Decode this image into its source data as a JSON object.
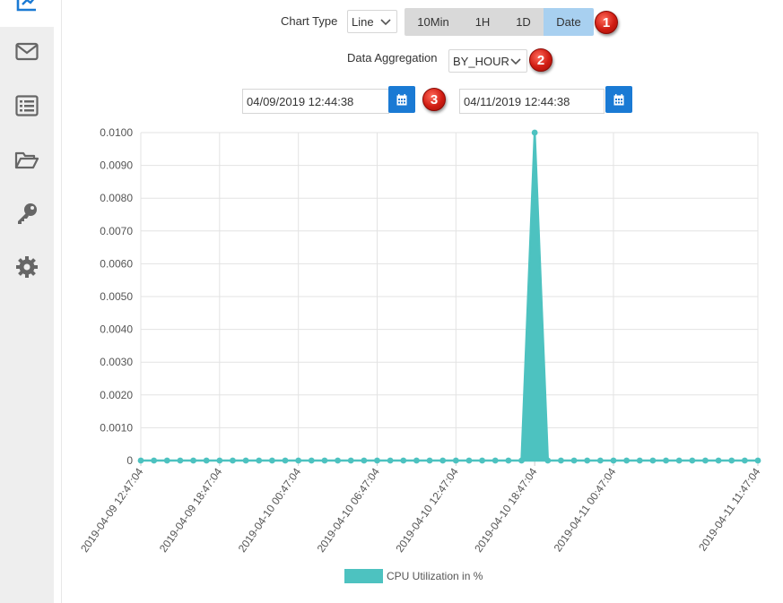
{
  "sidebar": {
    "items": [
      {
        "icon": "dashboard-icon",
        "active": true
      },
      {
        "icon": "envelope-icon"
      },
      {
        "icon": "list-icon"
      },
      {
        "icon": "folder-open-icon"
      },
      {
        "icon": "key-icon"
      },
      {
        "icon": "gear-icon"
      }
    ]
  },
  "controls": {
    "chart_type_label": "Chart Type",
    "chart_type_value": "Line",
    "range_buttons": [
      "10Min",
      "1H",
      "1D",
      "Date"
    ],
    "range_active": "Date",
    "aggregation_label": "Data Aggregation",
    "aggregation_value": "BY_HOUR",
    "start_date": "04/09/2019 12:44:38",
    "end_date": "04/11/2019 12:44:38",
    "badges": [
      "1",
      "2",
      "3"
    ]
  },
  "colors": {
    "series": "#4dc2c0",
    "accent": "#1a7ad4",
    "active_segment": "#a8d0f0"
  },
  "chart_data": {
    "type": "area",
    "ylim": [
      0,
      0.01
    ],
    "y_ticks": [
      "0",
      "0.0010",
      "0.0020",
      "0.0030",
      "0.0040",
      "0.0050",
      "0.0060",
      "0.0070",
      "0.0080",
      "0.0090",
      "0.0100"
    ],
    "x_tick_labels": [
      "2019-04-09 12:47:04",
      "2019-04-09 18:47:04",
      "2019-04-10 00:47:04",
      "2019-04-10 06:47:04",
      "2019-04-10 12:47:04",
      "2019-04-10 18:47:04",
      "2019-04-11 00:47:04",
      "2019-04-11 11:47:04"
    ],
    "x_tick_hours": [
      0,
      6,
      12,
      18,
      24,
      30,
      36,
      47
    ],
    "x_range_hours": [
      0,
      47
    ],
    "series": [
      {
        "name": "CPU Utilization in %",
        "points_hours": [
          0,
          1,
          2,
          3,
          4,
          5,
          6,
          7,
          8,
          9,
          10,
          11,
          12,
          13,
          14,
          15,
          16,
          17,
          18,
          19,
          20,
          21,
          22,
          23,
          24,
          25,
          26,
          27,
          28,
          29,
          30,
          31,
          32,
          33,
          34,
          35,
          36,
          37,
          38,
          39,
          40,
          41,
          42,
          43,
          44,
          45,
          46,
          47
        ],
        "values": [
          0,
          0,
          0,
          0,
          0,
          0,
          0,
          0,
          0,
          0,
          0,
          0,
          0,
          0,
          0,
          0,
          0,
          0,
          0,
          0,
          0,
          0,
          0,
          0,
          0,
          0,
          0,
          0,
          0,
          0,
          0.01,
          0,
          0,
          0,
          0,
          0,
          0,
          0,
          0,
          0,
          0,
          0,
          0,
          0,
          0,
          0,
          0,
          0
        ]
      }
    ],
    "grid": true,
    "legend": "bottom"
  }
}
